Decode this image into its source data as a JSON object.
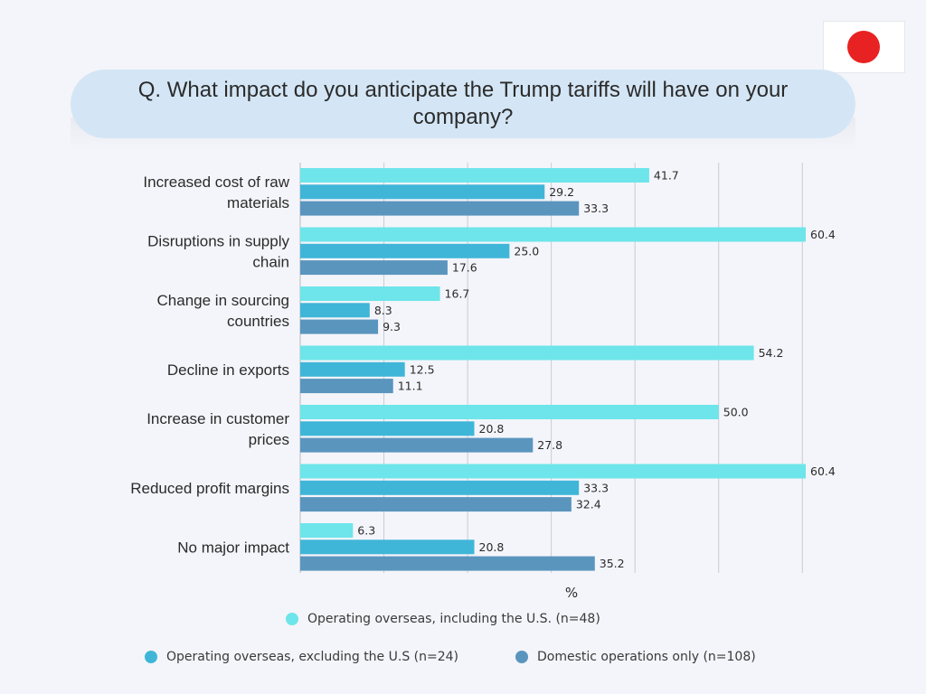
{
  "title": "Q. What impact do you anticipate the Trump tariffs will have on your company?",
  "flag": {
    "icon": "japan-flag-icon",
    "disc_color": "#e82222"
  },
  "chart_data": {
    "type": "bar",
    "orientation": "horizontal",
    "title": "Q. What impact do you anticipate the Trump tariffs will have on your company?",
    "xlabel": "%",
    "ylabel": "",
    "xlim": [
      0,
      60
    ],
    "grid": true,
    "legend_position": "bottom",
    "categories": [
      "Increased cost of raw materials",
      "Disruptions in supply chain",
      "Change in sourcing countries",
      "Decline in exports",
      "Increase in customer prices",
      "Reduced profit margins",
      "No major impact"
    ],
    "series": [
      {
        "name": "Operating overseas, including the U.S. (n=48)",
        "color": "#6de5ea",
        "values": [
          41.7,
          60.4,
          16.7,
          54.2,
          50.0,
          60.4,
          6.3
        ]
      },
      {
        "name": "Operating overseas, excluding the U.S (n=24)",
        "color": "#3fb6d8",
        "values": [
          29.2,
          25.0,
          8.3,
          12.5,
          20.8,
          33.3,
          20.8
        ]
      },
      {
        "name": "Domestic operations only (n=108)",
        "color": "#5a95be",
        "values": [
          33.3,
          17.6,
          9.3,
          11.1,
          27.8,
          32.4,
          35.2
        ]
      }
    ]
  }
}
